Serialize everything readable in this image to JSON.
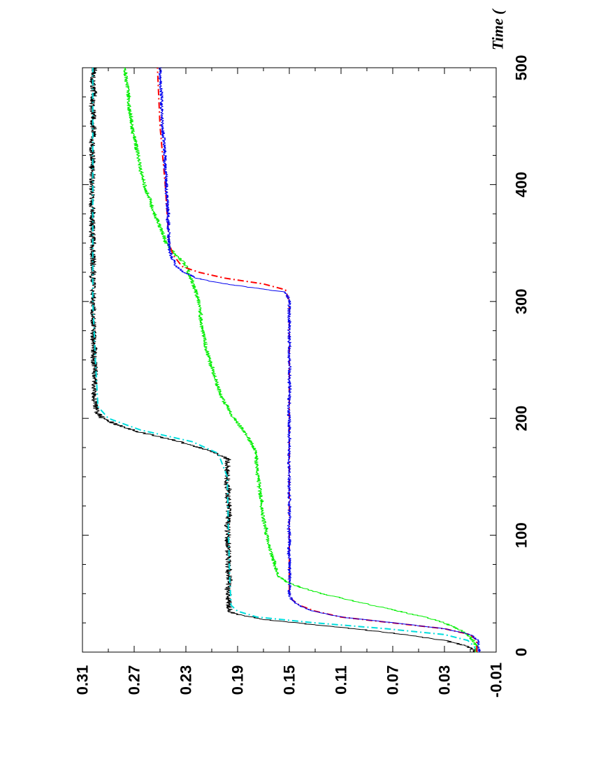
{
  "chart_data": {
    "type": "line",
    "orientation": "rotated-90-clockwise",
    "title": "",
    "xlabel": "Time (",
    "ylabel": "",
    "xlim": [
      0,
      500
    ],
    "ylim": [
      -0.01,
      0.31
    ],
    "x_ticks": [
      0,
      100,
      200,
      300,
      400,
      500
    ],
    "x_tick_labels": [
      "0",
      "100",
      "200",
      "300",
      "400",
      "500"
    ],
    "y_ticks": [
      -0.01,
      0.03,
      0.07,
      0.11,
      0.15,
      0.19,
      0.23,
      0.27,
      0.31
    ],
    "y_tick_labels": [
      "-0.01",
      "0.03",
      "0.07",
      "0.11",
      "0.15",
      "0.19",
      "0.23",
      "0.27",
      "0.31"
    ],
    "grid": false,
    "legend": "none",
    "series": [
      {
        "color": "#000000",
        "style": "solid",
        "noise": 0.0045,
        "x": [
          0,
          3,
          6,
          10,
          15,
          20,
          25,
          28,
          31,
          34,
          40,
          60,
          100,
          150,
          165,
          172,
          180,
          188,
          195,
          200,
          205,
          210,
          250,
          300,
          350,
          400,
          450,
          500
        ],
        "y": [
          0.005,
          0.008,
          0.015,
          0.03,
          0.06,
          0.1,
          0.145,
          0.17,
          0.185,
          0.195,
          0.197,
          0.197,
          0.197,
          0.198,
          0.198,
          0.21,
          0.235,
          0.265,
          0.285,
          0.295,
          0.298,
          0.3,
          0.301,
          0.302,
          0.302,
          0.302,
          0.302,
          0.302
        ]
      },
      {
        "color": "#00dddd",
        "style": "dash-dot",
        "noise": 0,
        "x": [
          0,
          5,
          10,
          15,
          20,
          25,
          30,
          35,
          40,
          60,
          100,
          150,
          170,
          180,
          190,
          200,
          210,
          250,
          300,
          400,
          500
        ],
        "y": [
          0.005,
          0.007,
          0.012,
          0.03,
          0.075,
          0.13,
          0.175,
          0.19,
          0.195,
          0.196,
          0.197,
          0.198,
          0.205,
          0.225,
          0.265,
          0.29,
          0.298,
          0.3,
          0.302,
          0.302,
          0.302
        ]
      },
      {
        "color": "#00ee00",
        "style": "solid",
        "noise": 0.003,
        "x": [
          0,
          5,
          10,
          15,
          20,
          25,
          30,
          35,
          40,
          45,
          50,
          55,
          60,
          65,
          80,
          100,
          130,
          170,
          180,
          190,
          200,
          220,
          250,
          280,
          300,
          320,
          330,
          335,
          340,
          350,
          370,
          400,
          450,
          500
        ],
        "y": [
          0.005,
          0.005,
          0.008,
          0.012,
          0.02,
          0.03,
          0.045,
          0.065,
          0.085,
          0.105,
          0.125,
          0.14,
          0.152,
          0.158,
          0.163,
          0.168,
          0.172,
          0.176,
          0.18,
          0.186,
          0.193,
          0.203,
          0.212,
          0.218,
          0.22,
          0.226,
          0.23,
          0.233,
          0.238,
          0.245,
          0.253,
          0.262,
          0.272,
          0.277
        ]
      },
      {
        "color": "#ff0000",
        "style": "dash-dot",
        "noise": 0,
        "x": [
          0,
          10,
          15,
          20,
          25,
          30,
          35,
          40,
          45,
          50,
          60,
          100,
          200,
          300,
          310,
          315,
          320,
          325,
          330,
          340,
          350,
          400,
          450,
          500
        ],
        "y": [
          0.005,
          0.005,
          0.01,
          0.03,
          0.07,
          0.11,
          0.13,
          0.142,
          0.148,
          0.15,
          0.15,
          0.15,
          0.15,
          0.15,
          0.153,
          0.17,
          0.2,
          0.22,
          0.233,
          0.24,
          0.243,
          0.246,
          0.25,
          0.252
        ]
      },
      {
        "color": "#0000ee",
        "style": "solid",
        "noise": 0.0025,
        "x": [
          0,
          10,
          15,
          20,
          25,
          30,
          35,
          40,
          45,
          50,
          60,
          100,
          200,
          300,
          308,
          312,
          316,
          320,
          325,
          330,
          335,
          340,
          350,
          400,
          450,
          500
        ],
        "y": [
          0.003,
          0.004,
          0.01,
          0.03,
          0.07,
          0.11,
          0.132,
          0.143,
          0.148,
          0.15,
          0.15,
          0.15,
          0.15,
          0.15,
          0.153,
          0.18,
          0.205,
          0.222,
          0.232,
          0.238,
          0.24,
          0.242,
          0.243,
          0.245,
          0.248,
          0.25
        ]
      }
    ]
  }
}
